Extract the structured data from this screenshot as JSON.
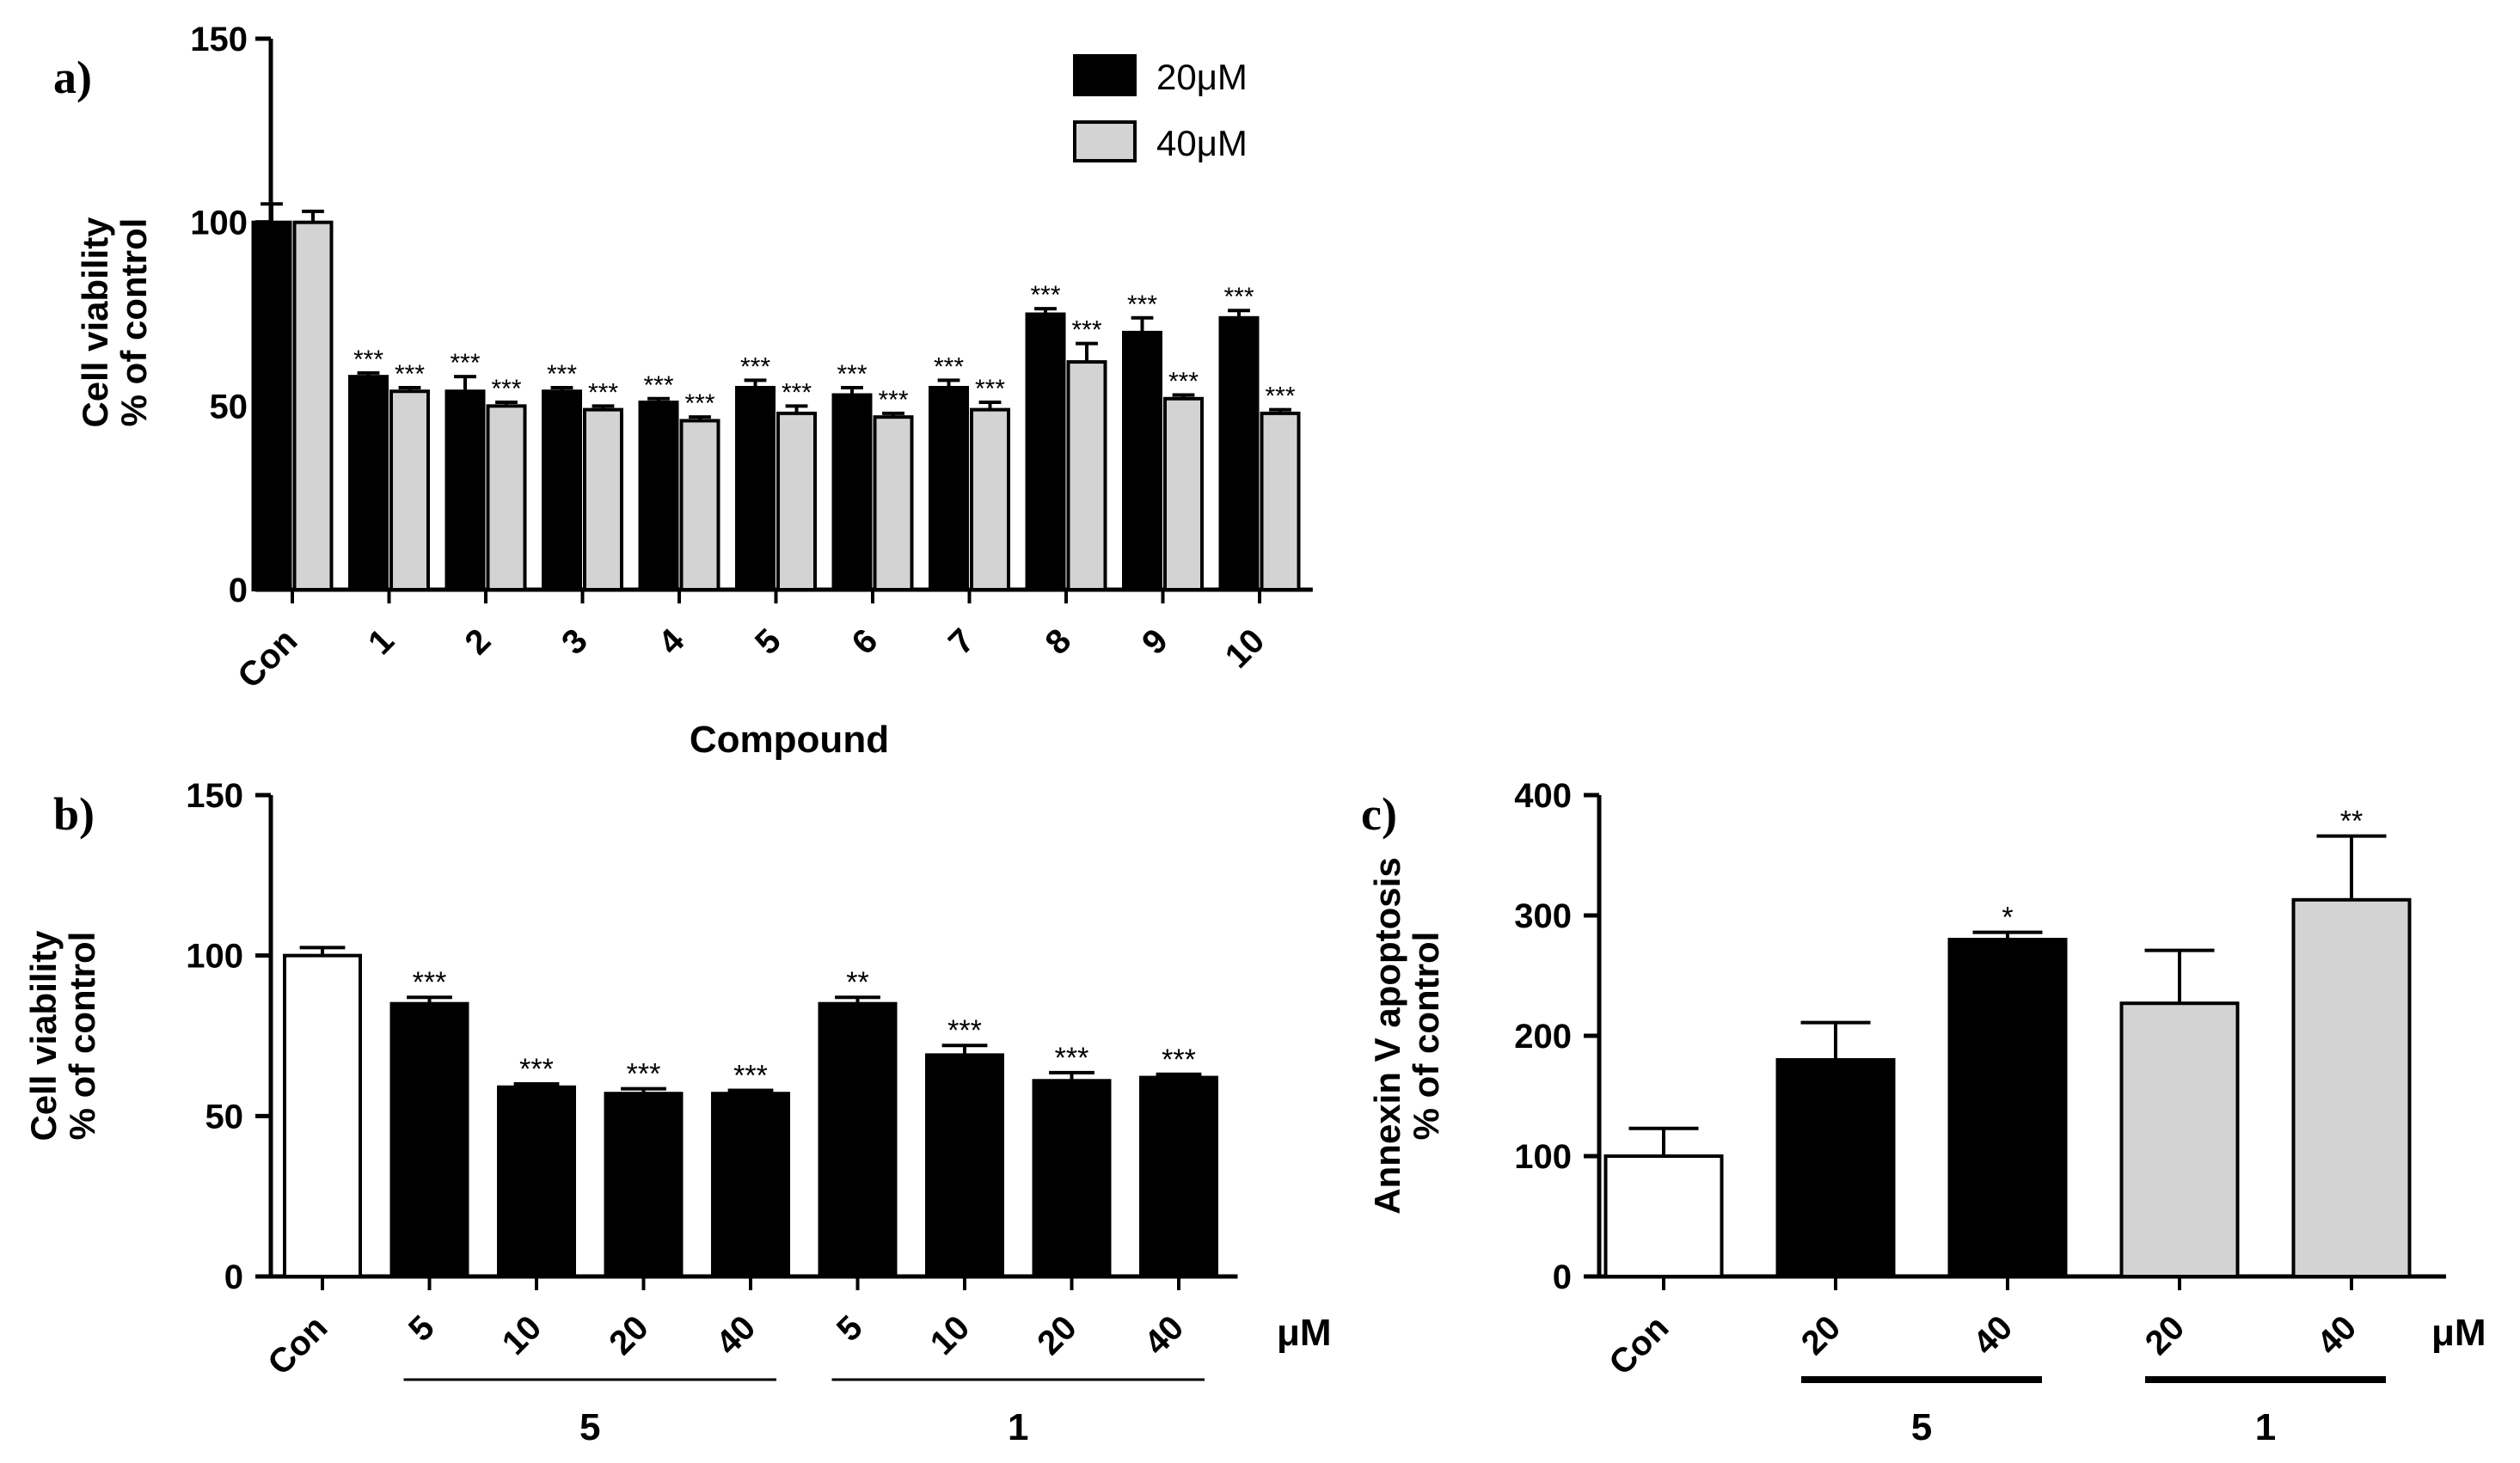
{
  "chart_data": [
    {
      "panel_label": "a)",
      "type": "bar",
      "xlabel": "Compound",
      "ylabel_line1": "Cell viability",
      "ylabel_line2": "% of control",
      "ylim": [
        0,
        150
      ],
      "yticks": [
        "0",
        "50",
        "100",
        "150"
      ],
      "legend_position": "top-right",
      "categories": [
        "Con",
        "1",
        "2",
        "3",
        "4",
        "5",
        "6",
        "7",
        "8",
        "9",
        "10"
      ],
      "series": [
        {
          "name": "20μM",
          "color": "#000000",
          "values": [
            100,
            58,
            54,
            54,
            51,
            55,
            53,
            55,
            75,
            70,
            74
          ],
          "errors": [
            5,
            1,
            4,
            1,
            1,
            2,
            2,
            2,
            1.5,
            4,
            2
          ],
          "significance": [
            "",
            "***",
            "***",
            "***",
            "***",
            "***",
            "***",
            "***",
            "***",
            "***",
            "***"
          ]
        },
        {
          "name": "40μM",
          "color": "#d3d3d3",
          "values": [
            100,
            54,
            50,
            49,
            46,
            48,
            47,
            49,
            62,
            52,
            48
          ],
          "errors": [
            3,
            1,
            1,
            1,
            1,
            2,
            1,
            2,
            5,
            1,
            1
          ],
          "significance": [
            "",
            "***",
            "***",
            "***",
            "***",
            "***",
            "***",
            "***",
            "***",
            "***",
            "***"
          ]
        }
      ]
    },
    {
      "panel_label": "b)",
      "type": "bar",
      "ylabel_line1": "Cell viability",
      "ylabel_line2": "% of control",
      "ylim": [
        0,
        150
      ],
      "yticks": [
        "0",
        "50",
        "100",
        "150"
      ],
      "unit_label": "μM",
      "categories": [
        "Con",
        "5",
        "10",
        "20",
        "40",
        "5",
        "10",
        "20",
        "40"
      ],
      "values": [
        100,
        85,
        59,
        57,
        57,
        85,
        69,
        61,
        62
      ],
      "errors": [
        2.5,
        2,
        1,
        1.5,
        1,
        2,
        3,
        2.5,
        1
      ],
      "colors": [
        "#ffffff",
        "#000000",
        "#000000",
        "#000000",
        "#000000",
        "#000000",
        "#000000",
        "#000000",
        "#000000"
      ],
      "significance": [
        "",
        "***",
        "***",
        "***",
        "***",
        "**",
        "***",
        "***",
        "***"
      ],
      "groups": [
        {
          "label": "5",
          "from": 1,
          "to": 4
        },
        {
          "label": "1",
          "from": 5,
          "to": 8
        }
      ]
    },
    {
      "panel_label": "c)",
      "type": "bar",
      "ylabel_line1": "Annexin V apoptosis",
      "ylabel_line2": "% of control",
      "ylim": [
        0,
        400
      ],
      "yticks": [
        "0",
        "100",
        "200",
        "300",
        "400"
      ],
      "unit_label": "μM",
      "categories": [
        "Con",
        "20",
        "40",
        "20",
        "40"
      ],
      "values": [
        100,
        180,
        280,
        227,
        313
      ],
      "errors": [
        23,
        31,
        6,
        44,
        53
      ],
      "colors": [
        "#ffffff",
        "#000000",
        "#000000",
        "#d3d3d3",
        "#d3d3d3"
      ],
      "significance": [
        "",
        "",
        "*",
        "",
        "**"
      ],
      "groups": [
        {
          "label": "5",
          "from": 1,
          "to": 2
        },
        {
          "label": "1",
          "from": 3,
          "to": 4
        }
      ]
    }
  ]
}
